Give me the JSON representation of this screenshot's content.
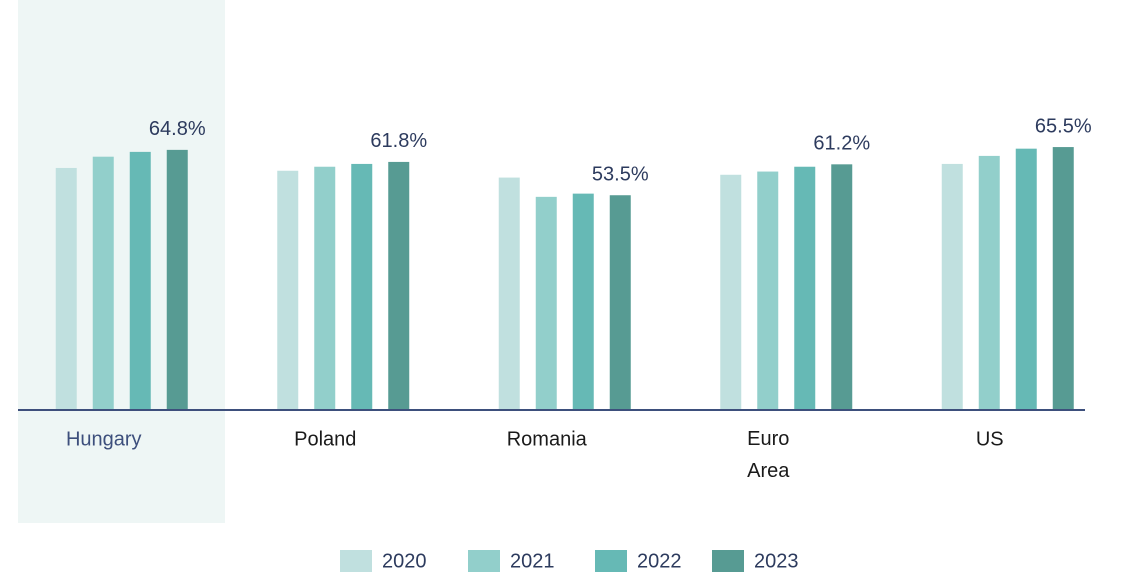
{
  "chart_data": {
    "type": "bar",
    "categories": [
      "Hungary",
      "Poland",
      "Romania",
      "Euro Area",
      "US"
    ],
    "series": [
      {
        "name": "2020",
        "color": "#c0e0df",
        "values": [
          60.3,
          59.6,
          57.9,
          58.6,
          61.3
        ]
      },
      {
        "name": "2021",
        "color": "#92cfcb",
        "values": [
          63.1,
          60.6,
          53.1,
          59.4,
          63.3
        ]
      },
      {
        "name": "2022",
        "color": "#66b9b5",
        "values": [
          64.3,
          61.3,
          53.9,
          60.6,
          65.1
        ]
      },
      {
        "name": "2023",
        "color": "#579b93",
        "values": [
          64.8,
          61.8,
          53.5,
          61.2,
          65.5
        ],
        "value_labels": [
          "64.8%",
          "61.8%",
          "53.5%",
          "61.2%",
          "65.5%"
        ]
      }
    ],
    "ylim": [
      0,
      70
    ]
  }
}
